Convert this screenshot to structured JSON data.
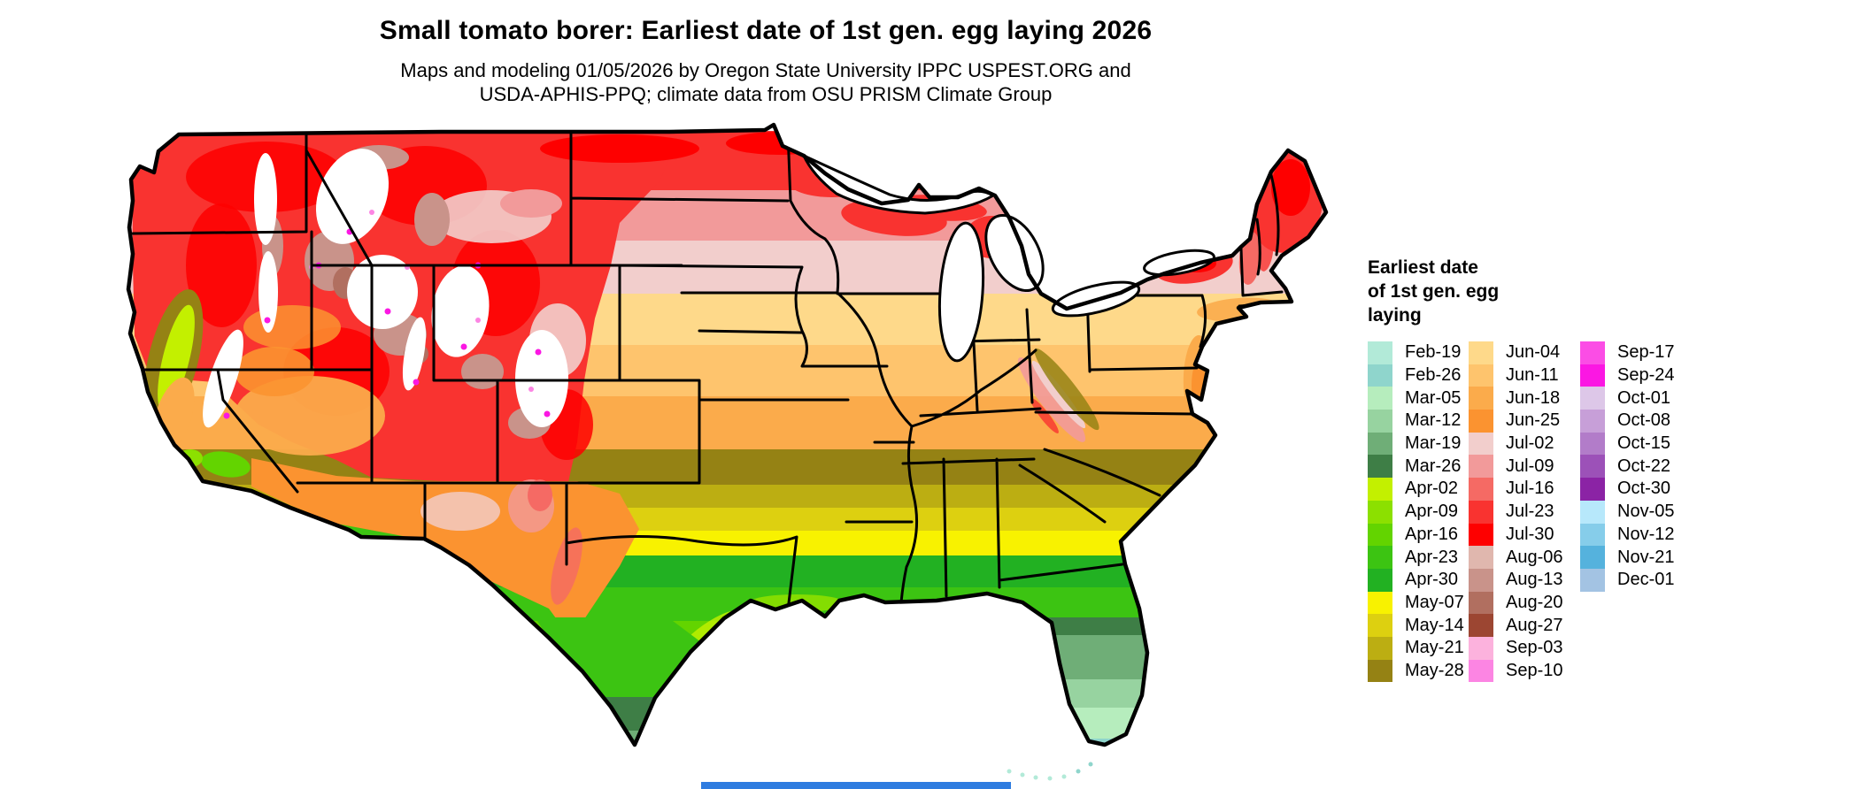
{
  "header": {
    "title": "Small tomato borer: Earliest date of 1st gen. egg laying 2026",
    "subtitle_line1": "Maps and modeling 01/05/2026 by Oregon State University IPPC USPEST.ORG and",
    "subtitle_line2": "USDA-APHIS-PPQ; climate data from OSU PRISM Climate Group"
  },
  "legend": {
    "title_lines": [
      "Earliest date",
      "of 1st gen. egg",
      "laying"
    ],
    "columns": [
      [
        {
          "label": "Feb-19",
          "color": "#b2ead8"
        },
        {
          "label": "Feb-26",
          "color": "#8fd5cc"
        },
        {
          "label": "Mar-05",
          "color": "#b6edbd"
        },
        {
          "label": "Mar-12",
          "color": "#97d3a0"
        },
        {
          "label": "Mar-19",
          "color": "#6fae77"
        },
        {
          "label": "Mar-26",
          "color": "#3e7e46"
        },
        {
          "label": "Apr-02",
          "color": "#c3f000"
        },
        {
          "label": "Apr-09",
          "color": "#8ce000"
        },
        {
          "label": "Apr-16",
          "color": "#63d400"
        },
        {
          "label": "Apr-23",
          "color": "#3cc412"
        },
        {
          "label": "Apr-30",
          "color": "#22b122"
        },
        {
          "label": "May-07",
          "color": "#f8f200"
        },
        {
          "label": "May-14",
          "color": "#ddd010"
        },
        {
          "label": "May-21",
          "color": "#bcae12"
        },
        {
          "label": "May-28",
          "color": "#958214"
        }
      ],
      [
        {
          "label": "Jun-04",
          "color": "#fed98a"
        },
        {
          "label": "Jun-11",
          "color": "#fec46d"
        },
        {
          "label": "Jun-18",
          "color": "#fbab4b"
        },
        {
          "label": "Jun-25",
          "color": "#fb9330"
        },
        {
          "label": "Jul-02",
          "color": "#f2cecc"
        },
        {
          "label": "Jul-09",
          "color": "#f29a9a"
        },
        {
          "label": "Jul-16",
          "color": "#f56a64"
        },
        {
          "label": "Jul-23",
          "color": "#f93330"
        },
        {
          "label": "Jul-30",
          "color": "#fe0000"
        },
        {
          "label": "Aug-06",
          "color": "#e0b7ae"
        },
        {
          "label": "Aug-13",
          "color": "#c9938a"
        },
        {
          "label": "Aug-20",
          "color": "#b16f60"
        },
        {
          "label": "Aug-27",
          "color": "#9c4632"
        },
        {
          "label": "Sep-03",
          "color": "#fcb2dd"
        },
        {
          "label": "Sep-10",
          "color": "#fc85e3"
        }
      ],
      [
        {
          "label": "Sep-17",
          "color": "#fb4de5"
        },
        {
          "label": "Sep-24",
          "color": "#fb17e3"
        },
        {
          "label": "Oct-01",
          "color": "#ddc7e8"
        },
        {
          "label": "Oct-08",
          "color": "#c79fd8"
        },
        {
          "label": "Oct-15",
          "color": "#b27cc9"
        },
        {
          "label": "Oct-22",
          "color": "#9c51b8"
        },
        {
          "label": "Oct-30",
          "color": "#8b23a5"
        },
        {
          "label": "Nov-05",
          "color": "#b7e8fb"
        },
        {
          "label": "Nov-12",
          "color": "#86cdea"
        },
        {
          "label": "Nov-21",
          "color": "#55b2dd"
        },
        {
          "label": "Dec-01",
          "color": "#a3c3e3"
        }
      ]
    ]
  },
  "map": {
    "type": "choropleth-raster",
    "extent": "contiguous United States with state borders",
    "nodata_color": "#ffffff",
    "gradient_north_to_south": [
      "Jul-30",
      "Jul-23",
      "Jul-09",
      "Jul-02",
      "Jun-04",
      "Jun-11",
      "Jun-18",
      "Jun-25",
      "May-28",
      "May-21",
      "May-14",
      "May-07",
      "Apr-30",
      "Apr-23",
      "Apr-16",
      "Apr-09",
      "Apr-02",
      "Mar-26",
      "Mar-19",
      "Mar-12",
      "Mar-05",
      "Feb-26",
      "Feb-19"
    ],
    "mountain_west": "later dates (Aug-Oct shades) and white no-data patches over high terrain"
  },
  "footer": {
    "bar_color": "#2e7ce0"
  }
}
